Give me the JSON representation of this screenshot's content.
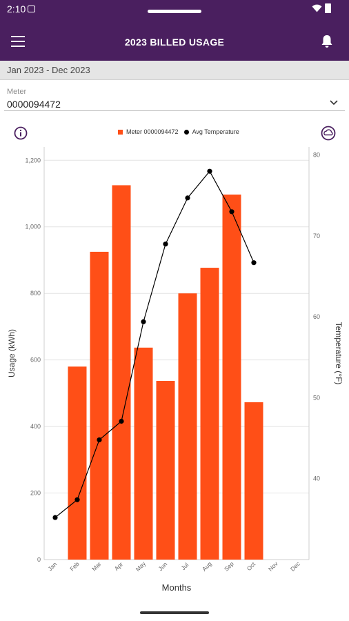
{
  "status_bar": {
    "time": "2:10"
  },
  "app_bar": {
    "title": "2023 BILLED USAGE"
  },
  "date_range": "Jan 2023 - Dec 2023",
  "meter": {
    "label": "Meter",
    "value": "0000094472"
  },
  "colors": {
    "header": "#4a1f5f",
    "bar": "#ff4f17",
    "line": "#000000"
  },
  "icons": {
    "menu": "hamburger-icon",
    "notifications": "bell-icon",
    "info": "info-icon",
    "weather": "weather-icon",
    "dropdown": "chevron-down-icon"
  },
  "chart_data": {
    "type": "bar",
    "categories": [
      "Jan",
      "Feb",
      "Mar",
      "Apr",
      "May",
      "Jun",
      "Jul",
      "Aug",
      "Sep",
      "Oct",
      "Nov",
      "Dec"
    ],
    "series": [
      {
        "name": "Meter 0000094472",
        "type": "bar",
        "axis": "left",
        "values": [
          null,
          580,
          925,
          1125,
          637,
          537,
          800,
          877,
          1097,
          473,
          null,
          null
        ]
      },
      {
        "name": "Avg Temperature",
        "type": "line",
        "axis": "right",
        "values": [
          35.2,
          37.4,
          44.8,
          47.1,
          59.4,
          69.0,
          74.7,
          78.0,
          73.0,
          66.7,
          null,
          null
        ]
      }
    ],
    "xlabel": "Months",
    "ylabel": "Usage (kWh)",
    "y2label": "Temperature (°F)",
    "ylim": [
      0,
      1240
    ],
    "y2lim": [
      30,
      81
    ],
    "yticks": [
      "0",
      "200",
      "400",
      "600",
      "800",
      "1,000",
      "1,200"
    ],
    "y2ticks": [
      "40",
      "50",
      "60",
      "70",
      "80"
    ],
    "legend": "top-center",
    "grid": true
  }
}
